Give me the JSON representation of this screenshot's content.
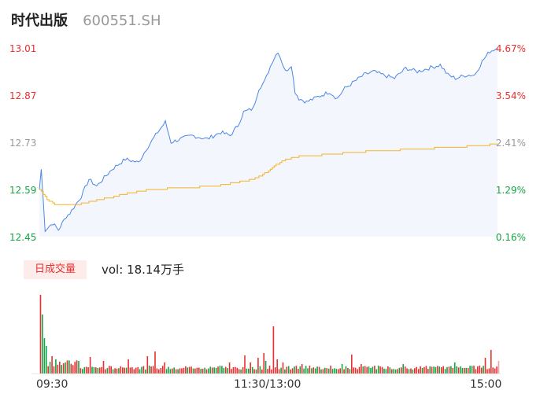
{
  "header": {
    "name": "时代出版",
    "code": "600551.SH"
  },
  "colors": {
    "up": "#e8302f",
    "down": "#15a445",
    "price_line": "#4a86e8",
    "avg_line": "#f5b324",
    "flat": "#999999"
  },
  "price_axis": [
    "13.01",
    "12.87",
    "12.73",
    "12.59",
    "12.45"
  ],
  "pct_axis": [
    "4.67%",
    "3.54%",
    "2.41%",
    "1.29%",
    "0.16%"
  ],
  "volume": {
    "badge": "日成交量",
    "text": "vol: 18.14万手"
  },
  "time_axis": [
    "09:30",
    "11:30/13:00",
    "15:00"
  ],
  "chart_data": {
    "type": "line",
    "ylim": [
      12.45,
      13.01
    ],
    "prev_close": 12.43,
    "price_anchors": [
      [
        0,
        12.59
      ],
      [
        1,
        12.65
      ],
      [
        3,
        12.47
      ],
      [
        5,
        12.48
      ],
      [
        7,
        12.49
      ],
      [
        10,
        12.47
      ],
      [
        14,
        12.51
      ],
      [
        16,
        12.52
      ],
      [
        22,
        12.57
      ],
      [
        26,
        12.62
      ],
      [
        30,
        12.6
      ],
      [
        38,
        12.65
      ],
      [
        45,
        12.68
      ],
      [
        52,
        12.67
      ],
      [
        56,
        12.71
      ],
      [
        62,
        12.76
      ],
      [
        66,
        12.79
      ],
      [
        69,
        12.73
      ],
      [
        74,
        12.74
      ],
      [
        80,
        12.75
      ],
      [
        88,
        12.74
      ],
      [
        95,
        12.76
      ],
      [
        100,
        12.75
      ],
      [
        104,
        12.78
      ],
      [
        107,
        12.82
      ],
      [
        112,
        12.83
      ],
      [
        115,
        12.89
      ],
      [
        118,
        12.91
      ],
      [
        122,
        12.97
      ],
      [
        124,
        12.99
      ],
      [
        125,
        13.0
      ],
      [
        127,
        12.97
      ],
      [
        129,
        12.94
      ],
      [
        132,
        12.96
      ],
      [
        134,
        12.88
      ],
      [
        136,
        12.86
      ],
      [
        140,
        12.85
      ],
      [
        144,
        12.86
      ],
      [
        148,
        12.87
      ],
      [
        152,
        12.88
      ],
      [
        156,
        12.86
      ],
      [
        160,
        12.89
      ],
      [
        165,
        12.91
      ],
      [
        170,
        12.93
      ],
      [
        175,
        12.94
      ],
      [
        180,
        12.93
      ],
      [
        186,
        12.92
      ],
      [
        192,
        12.95
      ],
      [
        198,
        12.94
      ],
      [
        204,
        12.95
      ],
      [
        210,
        12.96
      ],
      [
        214,
        12.93
      ],
      [
        218,
        12.92
      ],
      [
        224,
        12.93
      ],
      [
        228,
        12.93
      ],
      [
        232,
        12.97
      ],
      [
        236,
        13.0
      ],
      [
        240,
        13.01
      ]
    ],
    "avg_anchors": [
      [
        0,
        12.59
      ],
      [
        4,
        12.56
      ],
      [
        8,
        12.545
      ],
      [
        20,
        12.545
      ],
      [
        24,
        12.55
      ],
      [
        36,
        12.565
      ],
      [
        48,
        12.58
      ],
      [
        58,
        12.59
      ],
      [
        76,
        12.595
      ],
      [
        92,
        12.6
      ],
      [
        102,
        12.61
      ],
      [
        108,
        12.615
      ],
      [
        114,
        12.625
      ],
      [
        120,
        12.645
      ],
      [
        124,
        12.665
      ],
      [
        130,
        12.68
      ],
      [
        138,
        12.69
      ],
      [
        156,
        12.695
      ],
      [
        162,
        12.7
      ],
      [
        180,
        12.705
      ],
      [
        198,
        12.71
      ],
      [
        216,
        12.715
      ],
      [
        232,
        12.72
      ],
      [
        240,
        12.725
      ]
    ],
    "volume_spikes": [
      [
        0,
        100,
        "up"
      ],
      [
        1,
        75,
        "down"
      ],
      [
        2,
        45,
        "down"
      ],
      [
        3,
        35,
        "down"
      ],
      [
        6,
        22,
        "up"
      ],
      [
        8,
        18,
        "down"
      ],
      [
        10,
        15,
        "up"
      ],
      [
        20,
        16,
        "down"
      ],
      [
        26,
        21,
        "up"
      ],
      [
        33,
        16,
        "up"
      ],
      [
        46,
        18,
        "up"
      ],
      [
        56,
        22,
        "up"
      ],
      [
        60,
        28,
        "up"
      ],
      [
        65,
        14,
        "up"
      ],
      [
        99,
        14,
        "up"
      ],
      [
        107,
        23,
        "up"
      ],
      [
        110,
        14,
        "up"
      ],
      [
        114,
        20,
        "up"
      ],
      [
        117,
        26,
        "up"
      ],
      [
        118,
        16,
        "down"
      ],
      [
        122,
        60,
        "up"
      ],
      [
        124,
        18,
        "up"
      ],
      [
        127,
        14,
        "up"
      ],
      [
        137,
        12,
        "up"
      ],
      [
        152,
        10,
        "up"
      ],
      [
        158,
        12,
        "down"
      ],
      [
        163,
        24,
        "up"
      ],
      [
        168,
        12,
        "up"
      ],
      [
        190,
        12,
        "down"
      ],
      [
        217,
        14,
        "down"
      ],
      [
        230,
        10,
        "up"
      ],
      [
        233,
        20,
        "up"
      ],
      [
        236,
        30,
        "up"
      ],
      [
        240,
        16,
        "flat"
      ]
    ]
  }
}
